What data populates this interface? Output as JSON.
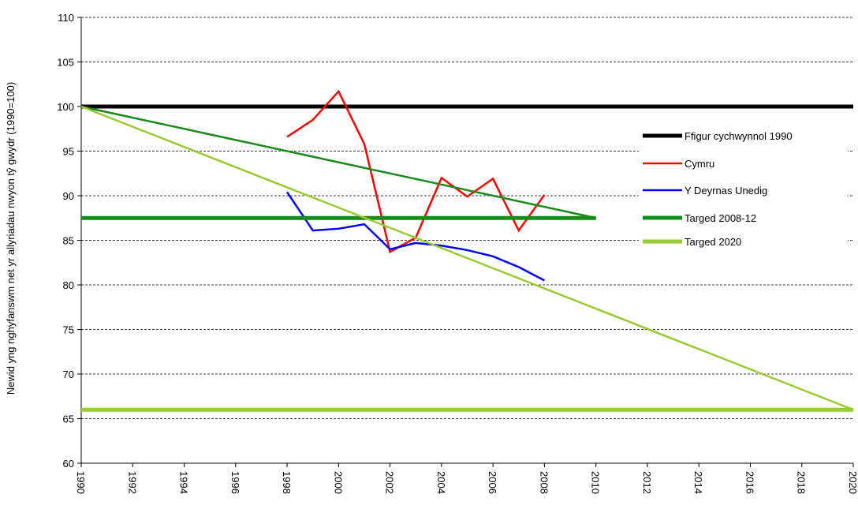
{
  "chart_data": {
    "type": "line",
    "ylabel": "Newid yng nghyfanswm net yr allyriadau nwyon tŷ gwydr (1990=100)",
    "xlim": [
      1990,
      2020
    ],
    "xticks": [
      1990,
      1992,
      1994,
      1996,
      1998,
      2000,
      2002,
      2004,
      2006,
      2008,
      2010,
      2012,
      2014,
      2016,
      2018,
      2020
    ],
    "ylim": [
      60,
      110
    ],
    "yticks": [
      60,
      65,
      70,
      75,
      80,
      85,
      90,
      95,
      100,
      105,
      110
    ],
    "grid": true,
    "legend": "right",
    "series": [
      {
        "name": "Ffigur cychwynnol 1990",
        "color": "#000000",
        "x": [
          1990,
          2020
        ],
        "values": [
          100,
          100
        ]
      },
      {
        "name": "Cymru",
        "color": "#ff0000",
        "x": [
          1998,
          1999,
          2000,
          2001,
          2002,
          2003,
          2004,
          2005,
          2006,
          2007,
          2008
        ],
        "values": [
          96.6,
          98.5,
          101.7,
          95.8,
          83.7,
          85.3,
          92.0,
          89.9,
          91.9,
          86.1,
          90.1
        ]
      },
      {
        "name": "Y Deyrnas Unedig",
        "color": "#0000ff",
        "x": [
          1998,
          1999,
          2000,
          2001,
          2002,
          2003,
          2004,
          2005,
          2006,
          2007,
          2008
        ],
        "values": [
          90.4,
          86.1,
          86.3,
          86.8,
          84.0,
          84.7,
          84.4,
          83.9,
          83.2,
          82.0,
          80.5
        ]
      },
      {
        "name": "Targed 2008-12",
        "color": "#1a8a1a",
        "x": [
          1990,
          2010
        ],
        "values": [
          87.5,
          87.5
        ],
        "trend_x": [
          1990,
          2010
        ],
        "trend_values": [
          100,
          87.5
        ]
      },
      {
        "name": "Targed 2020",
        "color": "#99cc33",
        "x": [
          1990,
          2020
        ],
        "values": [
          66,
          66
        ],
        "trend_x": [
          1990,
          2020
        ],
        "trend_values": [
          100,
          66
        ]
      }
    ]
  }
}
